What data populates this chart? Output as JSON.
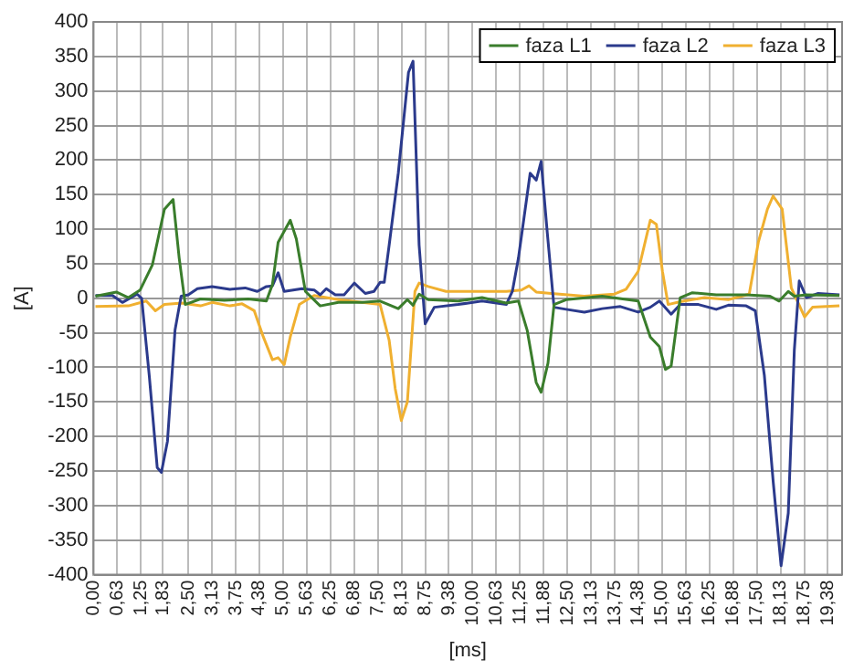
{
  "chart_data": {
    "type": "line",
    "xlabel": "[ms]",
    "ylabel": "[A]",
    "xlim": [
      0,
      19.75
    ],
    "ylim": [
      -400,
      400
    ],
    "xticks": [
      {
        "value": 0,
        "label": "0,00"
      },
      {
        "value": 0.625,
        "label": "0,63"
      },
      {
        "value": 1.25,
        "label": "1,25"
      },
      {
        "value": 1.83,
        "label": "1,83"
      },
      {
        "value": 2.5,
        "label": "2,50"
      },
      {
        "value": 3.125,
        "label": "3,13"
      },
      {
        "value": 3.75,
        "label": "3,75"
      },
      {
        "value": 4.375,
        "label": "4,38"
      },
      {
        "value": 5,
        "label": "5,00"
      },
      {
        "value": 5.625,
        "label": "5,63"
      },
      {
        "value": 6.25,
        "label": "6,25"
      },
      {
        "value": 6.875,
        "label": "6,88"
      },
      {
        "value": 7.5,
        "label": "7,50"
      },
      {
        "value": 8.125,
        "label": "8,13"
      },
      {
        "value": 8.75,
        "label": "8,75"
      },
      {
        "value": 9.375,
        "label": "9,38"
      },
      {
        "value": 10,
        "label": "10,00"
      },
      {
        "value": 10.625,
        "label": "10,63"
      },
      {
        "value": 11.25,
        "label": "11,25"
      },
      {
        "value": 11.875,
        "label": "11,88"
      },
      {
        "value": 12.5,
        "label": "12,50"
      },
      {
        "value": 13.125,
        "label": "13,13"
      },
      {
        "value": 13.75,
        "label": "13,75"
      },
      {
        "value": 14.375,
        "label": "14,38"
      },
      {
        "value": 15,
        "label": "15,00"
      },
      {
        "value": 15.625,
        "label": "15,63"
      },
      {
        "value": 16.25,
        "label": "16,25"
      },
      {
        "value": 16.875,
        "label": "16,88"
      },
      {
        "value": 17.5,
        "label": "17,50"
      },
      {
        "value": 18.125,
        "label": "18,13"
      },
      {
        "value": 18.75,
        "label": "18,75"
      },
      {
        "value": 19.375,
        "label": "19,38"
      }
    ],
    "yticks": [
      -400,
      -350,
      -300,
      -250,
      -200,
      -150,
      -100,
      -50,
      0,
      50,
      100,
      150,
      200,
      250,
      300,
      350,
      400
    ],
    "grid": true,
    "legend": "top right",
    "marker": "none",
    "line_style": "solid",
    "series": [
      {
        "name": "faza L1",
        "color": "#3a7d2c",
        "x": [
          0.05,
          0.6,
          0.92,
          1.23,
          1.55,
          1.87,
          2.1,
          2.26,
          2.42,
          2.82,
          3.45,
          4.08,
          4.56,
          4.72,
          4.87,
          5.19,
          5.35,
          5.59,
          5.98,
          6.46,
          7.09,
          7.56,
          8.04,
          8.28,
          8.43,
          8.59,
          8.83,
          9.62,
          10.25,
          10.89,
          11.21,
          11.44,
          11.68,
          11.81,
          11.99,
          12.15,
          12.47,
          13.42,
          14.37,
          14.69,
          14.93,
          15.09,
          15.24,
          15.48,
          15.8,
          16.43,
          17.22,
          17.85,
          18.09,
          18.33,
          18.49,
          18.81,
          19.68
        ],
        "values": [
          3,
          9,
          1,
          12,
          48,
          129,
          143,
          58,
          -9,
          -1,
          -3,
          -1,
          -4,
          20,
          81,
          113,
          86,
          10,
          -11,
          -6,
          -6,
          -4,
          -15,
          -2,
          -10,
          6,
          -2,
          -4,
          1,
          -7,
          -4,
          -46,
          -122,
          -136,
          -94,
          -9,
          -2,
          3,
          -4,
          -56,
          -70,
          -103,
          -98,
          1,
          8,
          5,
          5,
          3,
          -4,
          10,
          3,
          5,
          4
        ]
      },
      {
        "name": "faza L2",
        "color": "#2b3a8c",
        "x": [
          0.05,
          0.5,
          0.76,
          1.15,
          1.27,
          1.47,
          1.68,
          1.79,
          1.95,
          2.15,
          2.31,
          2.5,
          2.74,
          3.13,
          3.6,
          4.0,
          4.32,
          4.56,
          4.72,
          4.87,
          5.03,
          5.5,
          5.82,
          5.98,
          6.14,
          6.38,
          6.61,
          6.88,
          7.17,
          7.4,
          7.56,
          7.67,
          7.8,
          8.04,
          8.31,
          8.43,
          8.59,
          8.75,
          8.99,
          9.62,
          10.25,
          10.89,
          11.05,
          11.21,
          11.52,
          11.68,
          11.81,
          11.97,
          12.15,
          12.47,
          12.95,
          13.42,
          13.9,
          14.37,
          14.69,
          14.93,
          15.24,
          15.48,
          15.96,
          16.43,
          16.75,
          17.22,
          17.46,
          17.7,
          17.93,
          18.14,
          18.33,
          18.49,
          18.62,
          18.81,
          19.12,
          19.68
        ],
        "values": [
          4,
          4,
          -6,
          6,
          0,
          -112,
          -245,
          -252,
          -207,
          -46,
          3,
          5,
          14,
          17,
          13,
          15,
          10,
          17,
          18,
          37,
          10,
          14,
          12,
          5,
          14,
          5,
          5,
          22,
          7,
          10,
          23,
          23,
          77,
          181,
          327,
          343,
          77,
          -37,
          -13,
          -9,
          -4,
          -9,
          10,
          58,
          181,
          171,
          198,
          96,
          -13,
          -16,
          -20,
          -15,
          -12,
          -20,
          -13,
          -4,
          -23,
          -9,
          -9,
          -16,
          -10,
          -11,
          -18,
          -112,
          -264,
          -387,
          -311,
          -75,
          25,
          1,
          7,
          5
        ]
      },
      {
        "name": "faza L3",
        "color": "#f0b030",
        "x": [
          0.05,
          0.92,
          1.39,
          1.63,
          1.87,
          2.34,
          2.82,
          3.13,
          3.6,
          3.92,
          4.24,
          4.48,
          4.72,
          4.87,
          5.03,
          5.19,
          5.43,
          5.82,
          6.46,
          7.09,
          7.56,
          7.8,
          7.96,
          8.12,
          8.28,
          8.48,
          8.59,
          8.83,
          9.3,
          10.25,
          10.89,
          11.29,
          11.49,
          11.68,
          12.08,
          12.95,
          13.74,
          14.05,
          14.37,
          14.69,
          14.85,
          15.01,
          15.16,
          15.48,
          16.12,
          16.75,
          17.3,
          17.54,
          17.78,
          17.93,
          18.17,
          18.41,
          18.76,
          18.97,
          19.68
        ],
        "values": [
          -12,
          -11,
          -4,
          -18,
          -9,
          -7,
          -11,
          -6,
          -11,
          -8,
          -18,
          -56,
          -89,
          -86,
          -96,
          -56,
          -9,
          4,
          -2,
          -6,
          -9,
          -61,
          -131,
          -177,
          -150,
          10,
          22,
          17,
          10,
          10,
          10,
          12,
          18,
          9,
          7,
          3,
          6,
          13,
          39,
          113,
          107,
          39,
          -9,
          -5,
          1,
          -2,
          6,
          81,
          129,
          148,
          129,
          15,
          -27,
          -13,
          -11
        ]
      }
    ]
  }
}
